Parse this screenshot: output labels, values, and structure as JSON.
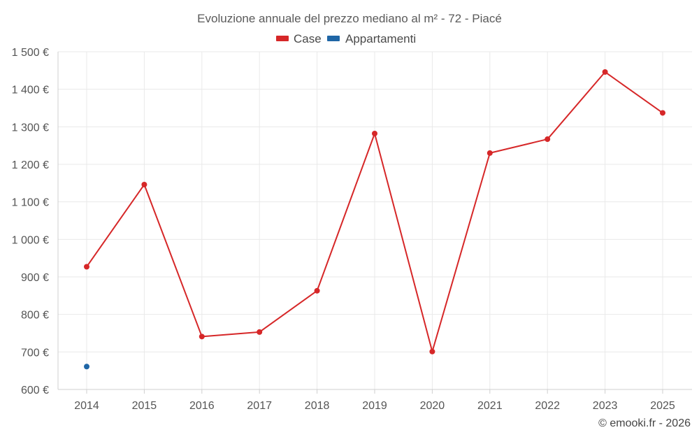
{
  "chart_data": {
    "type": "line",
    "title": "Evoluzione annuale del prezzo mediano al m² - 72 - Piacé",
    "x": [
      "2014",
      "2015",
      "2016",
      "2017",
      "2018",
      "2019",
      "2020",
      "2021",
      "2022",
      "2023",
      "2025"
    ],
    "y_ticks": [
      "600 €",
      "700 €",
      "800 €",
      "900 €",
      "1 000 €",
      "1 100 €",
      "1 200 €",
      "1 300 €",
      "1 400 €",
      "1 500 €"
    ],
    "ylim": [
      600,
      1500
    ],
    "grid": true,
    "legend_position": "top-center",
    "series": [
      {
        "name": "Case",
        "color": "#d62728",
        "values": [
          927,
          1146,
          741,
          753,
          863,
          1282,
          701,
          1230,
          1267,
          1446,
          1337
        ]
      },
      {
        "name": "Appartamenti",
        "color": "#1f66a6",
        "values": [
          661,
          null,
          null,
          null,
          null,
          null,
          null,
          null,
          null,
          null,
          null
        ]
      }
    ]
  },
  "credit": "© emooki.fr - 2026"
}
